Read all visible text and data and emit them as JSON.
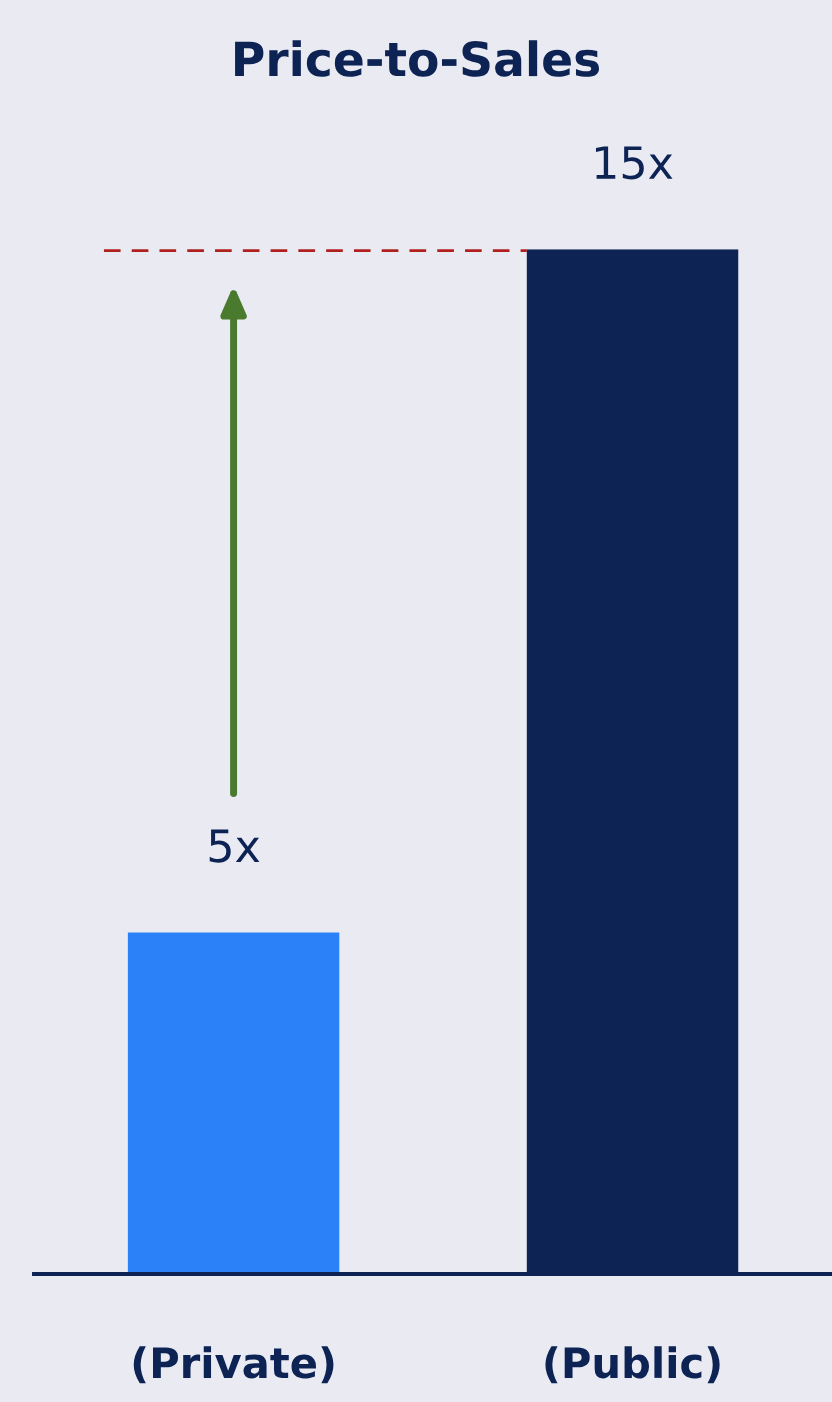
{
  "chart_data": {
    "type": "bar",
    "title": "Price-to-Sales",
    "categories": [
      "(Private)",
      "(Public)"
    ],
    "values": [
      5,
      15
    ],
    "value_labels": [
      "5x",
      "15x"
    ],
    "colors": [
      "#2b82f8",
      "#0c2354"
    ],
    "ref_lines": [
      {
        "axis": "y",
        "value": 15,
        "color": "#b0201e",
        "line_style": "dashed"
      }
    ],
    "grid": false,
    "legend": false
  }
}
